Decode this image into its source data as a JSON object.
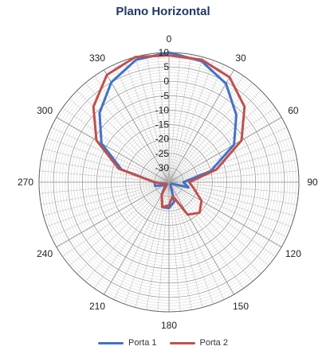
{
  "chart_data": {
    "type": "polar-line",
    "title": "Plano Horizontal",
    "angle_ticks": [
      0,
      30,
      60,
      90,
      120,
      150,
      180,
      210,
      240,
      270,
      300,
      330
    ],
    "radial_ticks": [
      10,
      5,
      0,
      -5,
      -10,
      -15,
      -20,
      -25,
      -30
    ],
    "rlim": [
      -35,
      10
    ],
    "series": [
      {
        "name": "Porta 1",
        "color": "#4472c4",
        "angles": [
          0,
          15,
          30,
          45,
          60,
          75,
          90,
          105,
          120,
          135,
          150,
          165,
          180,
          195,
          210,
          225,
          240,
          255,
          270,
          285,
          300,
          315,
          330,
          345,
          360
        ],
        "values": [
          10,
          8.5,
          4.5,
          -2,
          -9,
          -20,
          -30,
          -28,
          -34,
          -34,
          -34,
          -28,
          -26,
          -26,
          -30,
          -33,
          -33,
          -30,
          -30,
          -18,
          -8,
          -1,
          5,
          9,
          10
        ]
      },
      {
        "name": "Porta 2",
        "color": "#c0504d",
        "angles": [
          0,
          15,
          30,
          45,
          60,
          75,
          90,
          105,
          120,
          135,
          150,
          165,
          180,
          195,
          210,
          225,
          240,
          255,
          270,
          285,
          300,
          315,
          330,
          345,
          360
        ],
        "values": [
          9,
          9,
          7,
          2,
          -6,
          -18,
          -28,
          -26,
          -22,
          -20,
          -22,
          -30,
          -27,
          -26,
          -30,
          -34,
          -34,
          -33,
          -30,
          -17,
          -6,
          2,
          8,
          10,
          9
        ]
      }
    ]
  }
}
